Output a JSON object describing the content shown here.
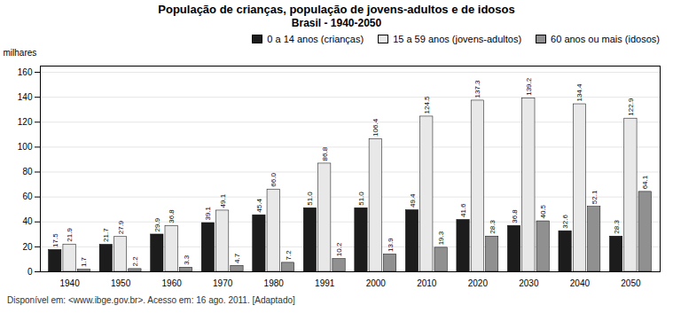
{
  "chart_data": {
    "type": "bar",
    "title": "População de crianças, população de jovens-adultos e de idosos",
    "subtitle": "Brasil - 1940-2050",
    "ylabel": "milhares",
    "categories": [
      "1940",
      "1950",
      "1960",
      "1970",
      "1980",
      "1991",
      "2000",
      "2010",
      "2020",
      "2030",
      "2040",
      "2050"
    ],
    "series": [
      {
        "name": "0 a 14 anos (crianças)",
        "color": "#1c1c1c",
        "values": [
          17.5,
          21.7,
          29.9,
          39.1,
          45.4,
          51.0,
          51.0,
          49.4,
          41.6,
          36.8,
          32.6,
          28.3
        ],
        "value_labels": [
          "17.5",
          "21.7",
          "29.9",
          "39.1",
          "45.4",
          "51.0",
          "51.0",
          "49.4",
          "41.6",
          "36.8",
          "32.6",
          "28.3"
        ]
      },
      {
        "name": "15 a 59 anos (jovens-adultos)",
        "color": "#e8e8e8",
        "values": [
          21.9,
          27.9,
          36.8,
          49.1,
          66.0,
          86.8,
          106.4,
          124.5,
          137.3,
          139.2,
          134.4,
          122.9
        ],
        "value_labels": [
          "21.9",
          "27.9",
          "36.8",
          "49.1",
          "66.0",
          "86.8",
          "106.4",
          "124.5",
          "137.3",
          "139.2",
          "134.4",
          "122.9"
        ]
      },
      {
        "name": "60 anos ou mais (idosos)",
        "color": "#909090",
        "values": [
          1.7,
          2.2,
          3.3,
          4.7,
          7.2,
          10.2,
          13.9,
          19.3,
          28.3,
          40.5,
          52.1,
          64.1
        ],
        "value_labels": [
          "1.7",
          "2.2",
          "3.3",
          "4.7",
          "7.2",
          "10.2",
          "13.9",
          "19.3",
          "28.3",
          "40.5",
          "52.1",
          "64.1"
        ]
      }
    ],
    "ylim": [
      0,
      165
    ],
    "yticks": [
      0,
      20,
      40,
      60,
      80,
      100,
      120,
      140,
      160
    ],
    "grid": true,
    "legend": "upper right",
    "data_labels": true,
    "annotations": [
      "Disponível em: <www.ibge.gov.br>. Acesso em: 16 ago. 2011. [Adaptado]"
    ]
  }
}
